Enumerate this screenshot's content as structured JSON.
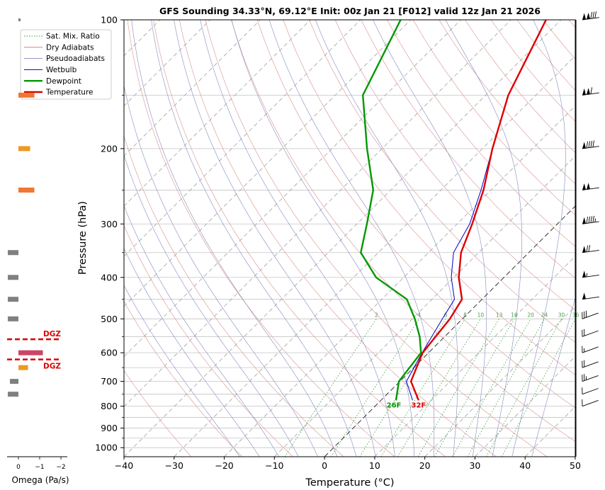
{
  "chart_data": {
    "type": "skew-t",
    "title": "GFS Sounding 34.33°N, 69.12°E Init: 00z Jan 21 [F012] valid 12z Jan 21 2026",
    "xlabel": "Temperature (°C)",
    "ylabel": "Pressure (hPa)",
    "xlim": [
      -40,
      50
    ],
    "ylim": [
      1050,
      100
    ],
    "x_ticks": [
      -40,
      -30,
      -20,
      -10,
      0,
      10,
      20,
      30,
      40,
      50
    ],
    "x_tick_labels": [
      "−40",
      "−30",
      "−20",
      "−10",
      "0",
      "10",
      "20",
      "30",
      "40",
      "50"
    ],
    "y_ticks": [
      100,
      200,
      300,
      400,
      500,
      600,
      700,
      800,
      900,
      1000
    ],
    "y_tick_labels": [
      "100",
      "200",
      "300",
      "400",
      "500",
      "600",
      "700",
      "800",
      "900",
      "1000"
    ],
    "y_minor_ticks": [
      150,
      250,
      350,
      450,
      550,
      650,
      750,
      850,
      950
    ],
    "grid": true,
    "legend_position": "top-left",
    "legend": [
      {
        "label": "Sat. Mix. Ratio",
        "color": "#3a9a3a",
        "style": "dotted"
      },
      {
        "label": "Dry Adiabats",
        "color": "#c87070",
        "style": "solid-thin"
      },
      {
        "label": "Pseudoadiabats",
        "color": "#7070b0",
        "style": "solid-thin"
      },
      {
        "label": "Wetbulb",
        "color": "#0000cc",
        "style": "solid"
      },
      {
        "label": "Dewpoint",
        "color": "#009900",
        "style": "solid-thick"
      },
      {
        "label": "Temperature",
        "color": "#dd0000",
        "style": "solid-thick"
      }
    ],
    "series": [
      {
        "name": "Temperature",
        "color": "#dd0000",
        "points": [
          [
            775,
            7.5
          ],
          [
            700,
            2.2
          ],
          [
            600,
            -1.2
          ],
          [
            500,
            -2.5
          ],
          [
            450,
            -4.0
          ],
          [
            400,
            -9.0
          ],
          [
            350,
            -13.5
          ],
          [
            300,
            -17.0
          ],
          [
            250,
            -21.5
          ],
          [
            200,
            -28.0
          ],
          [
            150,
            -35.5
          ],
          [
            100,
            -43.0
          ]
        ]
      },
      {
        "name": "Dewpoint",
        "color": "#009900",
        "points": [
          [
            775,
            3.0
          ],
          [
            700,
            -0.2
          ],
          [
            600,
            -1.5
          ],
          [
            550,
            -5.0
          ],
          [
            500,
            -9.5
          ],
          [
            450,
            -15.0
          ],
          [
            400,
            -25.5
          ],
          [
            350,
            -33.5
          ],
          [
            300,
            -38.0
          ],
          [
            250,
            -43.5
          ],
          [
            200,
            -53.0
          ],
          [
            150,
            -64.5
          ],
          [
            100,
            -72.0
          ]
        ]
      },
      {
        "name": "Wetbulb",
        "color": "#0000cc",
        "points": [
          [
            775,
            6.3
          ],
          [
            700,
            1.3
          ],
          [
            600,
            -1.3
          ],
          [
            500,
            -4.0
          ],
          [
            450,
            -5.5
          ],
          [
            400,
            -10.5
          ],
          [
            350,
            -15.0
          ],
          [
            300,
            -17.5
          ],
          [
            250,
            -22.0
          ],
          [
            200,
            -28.0
          ],
          [
            150,
            -35.5
          ],
          [
            100,
            -43.0
          ]
        ]
      }
    ],
    "mixing_ratio_labels": [
      "2",
      "4",
      "6",
      "8",
      "10",
      "13",
      "16",
      "20",
      "24",
      "30",
      "36"
    ],
    "mixing_ratio_values": [
      2,
      4,
      6,
      8,
      10,
      13,
      16,
      20,
      24,
      30,
      36
    ],
    "surface_labels": {
      "dewpoint": "26F",
      "temperature": "32F"
    },
    "dgz": {
      "label": "DGZ",
      "top_hpa": 558,
      "bottom_hpa": 622
    },
    "omega": {
      "xlabel": "Omega (Pa/s)",
      "ticks": [
        0,
        -1,
        -2
      ],
      "tick_labels": [
        "0",
        "−1",
        "−2"
      ],
      "bars": [
        {
          "p": 100,
          "value": -0.1,
          "color": "#808080"
        },
        {
          "p": 150,
          "value": -0.75,
          "color": "#ee7733"
        },
        {
          "p": 200,
          "value": -0.55,
          "color": "#ee9922"
        },
        {
          "p": 250,
          "value": -0.75,
          "color": "#ee7733"
        },
        {
          "p": 350,
          "value": 0.5,
          "color": "#808080"
        },
        {
          "p": 400,
          "value": 0.5,
          "color": "#808080"
        },
        {
          "p": 450,
          "value": 0.5,
          "color": "#808080"
        },
        {
          "p": 500,
          "value": 0.5,
          "color": "#808080"
        },
        {
          "p": 600,
          "value": -1.15,
          "color": "#cc4466"
        },
        {
          "p": 650,
          "value": -0.45,
          "color": "#ee9922"
        },
        {
          "p": 700,
          "value": 0.4,
          "color": "#808080"
        },
        {
          "p": 750,
          "value": 0.5,
          "color": "#808080"
        }
      ]
    },
    "wind_barbs": [
      {
        "p": 100,
        "speed_kt": 130
      },
      {
        "p": 150,
        "speed_kt": 110
      },
      {
        "p": 200,
        "speed_kt": 90
      },
      {
        "p": 250,
        "speed_kt": 100
      },
      {
        "p": 300,
        "speed_kt": 95
      },
      {
        "p": 350,
        "speed_kt": 70
      },
      {
        "p": 400,
        "speed_kt": 55
      },
      {
        "p": 450,
        "speed_kt": 50
      },
      {
        "p": 500,
        "speed_kt": 30
      },
      {
        "p": 550,
        "speed_kt": 20
      },
      {
        "p": 600,
        "speed_kt": 15
      },
      {
        "p": 650,
        "speed_kt": 20
      },
      {
        "p": 700,
        "speed_kt": 25
      },
      {
        "p": 750,
        "speed_kt": 10
      },
      {
        "p": 800,
        "speed_kt": 10
      }
    ]
  }
}
